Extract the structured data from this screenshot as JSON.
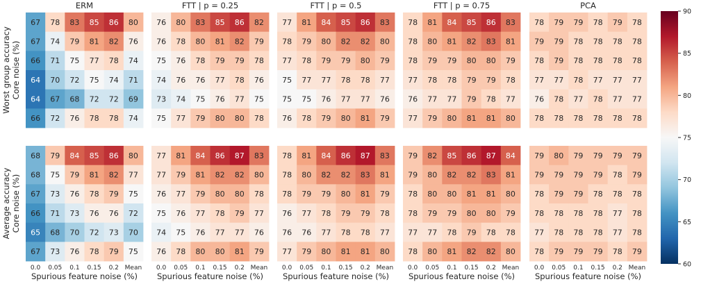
{
  "chart_data": {
    "type": "heatmap",
    "panel_titles": [
      "ERM",
      "FTT | p = 0.25",
      "FTT | p = 0.5",
      "FTT | p = 0.75",
      "PCA"
    ],
    "x_tick_labels": [
      "0.0",
      "0.05",
      "0.1",
      "0.15",
      "0.2",
      "Mean"
    ],
    "xlabel": "Spurious feature noise (%)",
    "row_groups": [
      {
        "ylabel_line1": "Worst group accuracy",
        "ylabel_line2": "Core noise (%)",
        "panels": [
          [
            [
              67,
              78,
              83,
              85,
              86,
              80
            ],
            [
              67,
              74,
              79,
              81,
              82,
              76
            ],
            [
              66,
              71,
              75,
              77,
              78,
              74
            ],
            [
              64,
              70,
              72,
              75,
              74,
              71
            ],
            [
              64,
              67,
              68,
              72,
              72,
              69
            ],
            [
              66,
              72,
              76,
              78,
              78,
              74
            ]
          ],
          [
            [
              76,
              80,
              83,
              85,
              86,
              82
            ],
            [
              76,
              78,
              80,
              81,
              82,
              79
            ],
            [
              75,
              76,
              78,
              79,
              79,
              78
            ],
            [
              74,
              76,
              76,
              77,
              78,
              76
            ],
            [
              73,
              74,
              75,
              76,
              77,
              75
            ],
            [
              75,
              77,
              79,
              80,
              80,
              78
            ]
          ],
          [
            [
              77,
              81,
              84,
              85,
              86,
              83
            ],
            [
              78,
              79,
              80,
              82,
              82,
              80
            ],
            [
              77,
              78,
              79,
              79,
              80,
              79
            ],
            [
              75,
              77,
              77,
              78,
              78,
              77
            ],
            [
              75,
              75,
              76,
              77,
              77,
              76
            ],
            [
              76,
              78,
              79,
              80,
              81,
              79
            ]
          ],
          [
            [
              78,
              81,
              84,
              85,
              86,
              83
            ],
            [
              78,
              80,
              81,
              82,
              83,
              81
            ],
            [
              78,
              79,
              79,
              80,
              80,
              79
            ],
            [
              77,
              78,
              78,
              79,
              79,
              78
            ],
            [
              76,
              77,
              77,
              79,
              78,
              77
            ],
            [
              77,
              79,
              80,
              81,
              81,
              80
            ]
          ],
          [
            [
              78,
              79,
              79,
              78,
              79,
              78
            ],
            [
              79,
              79,
              78,
              78,
              78,
              78
            ],
            [
              78,
              79,
              78,
              78,
              78,
              78
            ],
            [
              77,
              77,
              78,
              77,
              77,
              77
            ],
            [
              76,
              78,
              77,
              78,
              77,
              77
            ],
            [
              78,
              78,
              78,
              78,
              78,
              78
            ]
          ]
        ]
      },
      {
        "ylabel_line1": "Average accuracy",
        "ylabel_line2": "Core noise (%)",
        "panels": [
          [
            [
              68,
              79,
              84,
              85,
              86,
              80
            ],
            [
              68,
              75,
              79,
              81,
              82,
              77
            ],
            [
              67,
              73,
              76,
              78,
              79,
              75
            ],
            [
              66,
              71,
              73,
              76,
              76,
              72
            ],
            [
              65,
              68,
              70,
              72,
              73,
              70
            ],
            [
              67,
              73,
              76,
              78,
              79,
              75
            ]
          ],
          [
            [
              77,
              81,
              84,
              86,
              87,
              83
            ],
            [
              77,
              79,
              81,
              82,
              82,
              80
            ],
            [
              76,
              77,
              79,
              80,
              80,
              78
            ],
            [
              75,
              76,
              77,
              78,
              79,
              77
            ],
            [
              74,
              75,
              76,
              77,
              77,
              76
            ],
            [
              76,
              78,
              80,
              80,
              81,
              79
            ]
          ],
          [
            [
              78,
              81,
              84,
              86,
              87,
              83
            ],
            [
              78,
              80,
              82,
              82,
              83,
              81
            ],
            [
              78,
              79,
              79,
              80,
              81,
              79
            ],
            [
              76,
              77,
              78,
              79,
              79,
              78
            ],
            [
              76,
              76,
              77,
              78,
              78,
              77
            ],
            [
              77,
              79,
              80,
              81,
              81,
              80
            ]
          ],
          [
            [
              79,
              82,
              85,
              86,
              87,
              84
            ],
            [
              79,
              80,
              82,
              82,
              83,
              81
            ],
            [
              78,
              80,
              80,
              81,
              81,
              80
            ],
            [
              78,
              79,
              79,
              80,
              80,
              79
            ],
            [
              77,
              77,
              78,
              79,
              78,
              78
            ],
            [
              78,
              80,
              81,
              82,
              82,
              80
            ]
          ],
          [
            [
              79,
              80,
              79,
              79,
              79,
              79
            ],
            [
              79,
              79,
              79,
              79,
              78,
              79
            ],
            [
              78,
              79,
              79,
              78,
              78,
              78
            ],
            [
              78,
              78,
              78,
              78,
              77,
              78
            ],
            [
              77,
              78,
              78,
              78,
              77,
              78
            ],
            [
              78,
              79,
              79,
              79,
              78,
              79
            ]
          ]
        ]
      }
    ],
    "colorbar": {
      "min": 60,
      "max": 90,
      "ticks": [
        60,
        65,
        70,
        75,
        80,
        85,
        90
      ],
      "colormap": "RdBu_r"
    },
    "colors": [
      "#053061",
      "#2166ac",
      "#4393c3",
      "#92c5de",
      "#d1e5f0",
      "#f7f7f7",
      "#fddbc7",
      "#f4a582",
      "#d6604d",
      "#b2182b",
      "#67001f"
    ]
  }
}
